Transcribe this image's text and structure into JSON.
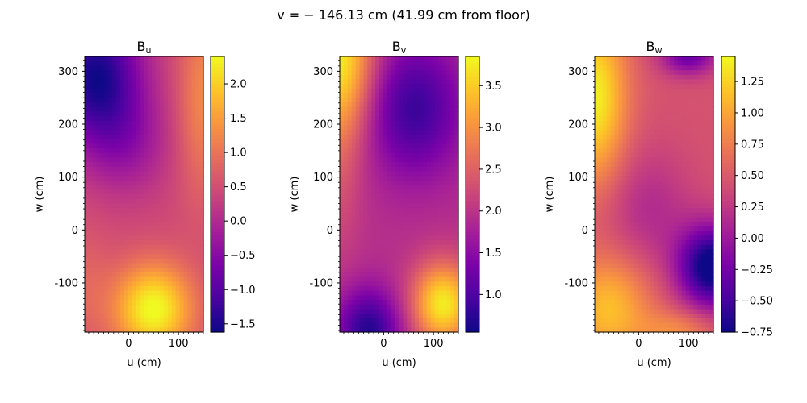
{
  "figure": {
    "suptitle": "v = − 146.13 cm (41.99 cm from floor)",
    "colormap": "plasma"
  },
  "chart_data": [
    {
      "type": "heatmap",
      "title": "B",
      "title_sub": "u",
      "xlabel": "u (cm)",
      "ylabel": "w (cm)",
      "xlim": [
        -88,
        150
      ],
      "ylim": [
        -193,
        328
      ],
      "xticks": [
        0,
        100
      ],
      "yticks": [
        -100,
        0,
        100,
        200,
        300
      ],
      "colorbar": {
        "min": -1.62,
        "max": 2.4,
        "ticks": [
          -1.5,
          -1.0,
          -0.5,
          0.0,
          0.5,
          1.0,
          1.5,
          2.0
        ],
        "tick_labels": [
          "−1.5",
          "−1.0",
          "−0.5",
          "0.0",
          "0.5",
          "1.0",
          "1.5",
          "2.0"
        ]
      },
      "field": {
        "base": 0.45,
        "features": [
          {
            "u": 50,
            "w": -150,
            "amp": 2.0,
            "su": 55,
            "sw": 60
          },
          {
            "u": -65,
            "w": 290,
            "amp": -2.0,
            "su": 65,
            "sw": 90
          },
          {
            "u": 0,
            "w": 160,
            "amp": -0.6,
            "su": 60,
            "sw": 70
          },
          {
            "u": 150,
            "w": 250,
            "amp": 0.8,
            "su": 35,
            "sw": 130
          },
          {
            "u": -90,
            "w": -110,
            "amp": 0.35,
            "su": 40,
            "sw": 80
          }
        ],
        "clip": [
          -1.62,
          2.4
        ]
      }
    },
    {
      "type": "heatmap",
      "title": "B",
      "title_sub": "v",
      "xlabel": "u (cm)",
      "ylabel": "w (cm)",
      "xlim": [
        -88,
        150
      ],
      "ylim": [
        -193,
        328
      ],
      "xticks": [
        0,
        100
      ],
      "yticks": [
        -100,
        0,
        100,
        200,
        300
      ],
      "colorbar": {
        "min": 0.55,
        "max": 3.85,
        "ticks": [
          1.0,
          1.5,
          2.0,
          2.5,
          3.0,
          3.5
        ],
        "tick_labels": [
          "1.0",
          "1.5",
          "2.0",
          "2.5",
          "3.0",
          "3.5"
        ]
      },
      "field": {
        "base": 1.95,
        "features": [
          {
            "u": -88,
            "w": 328,
            "amp": 1.8,
            "su": 50,
            "sw": 110
          },
          {
            "u": 120,
            "w": -140,
            "amp": 1.8,
            "su": 45,
            "sw": 55
          },
          {
            "u": -30,
            "w": -190,
            "amp": -1.25,
            "su": 45,
            "sw": 55
          },
          {
            "u": 60,
            "w": 230,
            "amp": -1.1,
            "su": 70,
            "sw": 90
          },
          {
            "u": -88,
            "w": 100,
            "amp": 0.3,
            "su": 30,
            "sw": 120
          }
        ],
        "clip": [
          0.55,
          3.85
        ]
      }
    },
    {
      "type": "heatmap",
      "title": "B",
      "title_sub": "w",
      "xlabel": "u (cm)",
      "ylabel": "w (cm)",
      "xlim": [
        -88,
        150
      ],
      "ylim": [
        -193,
        328
      ],
      "xticks": [
        0,
        100
      ],
      "yticks": [
        -100,
        0,
        100,
        200,
        300
      ],
      "colorbar": {
        "min": -0.75,
        "max": 1.45,
        "ticks": [
          -0.75,
          -0.5,
          -0.25,
          0.0,
          0.25,
          0.5,
          0.75,
          1.0,
          1.25
        ],
        "tick_labels": [
          "−0.75",
          "−0.50",
          "−0.25",
          "0.00",
          "0.25",
          "0.50",
          "0.75",
          "1.00",
          "1.25"
        ]
      },
      "field": {
        "base": 0.45,
        "features": [
          {
            "u": -88,
            "w": 250,
            "amp": 0.95,
            "su": 45,
            "sw": 110
          },
          {
            "u": -60,
            "w": -150,
            "amp": 0.7,
            "su": 60,
            "sw": 70
          },
          {
            "u": 150,
            "w": -70,
            "amp": -1.35,
            "su": 50,
            "sw": 55
          },
          {
            "u": 100,
            "w": 328,
            "amp": -0.75,
            "su": 40,
            "sw": 25
          },
          {
            "u": 20,
            "w": 40,
            "amp": -0.3,
            "su": 60,
            "sw": 80
          },
          {
            "u": 80,
            "w": -193,
            "amp": 0.4,
            "su": 50,
            "sw": 30
          }
        ],
        "clip": [
          -0.75,
          1.45
        ]
      }
    }
  ]
}
